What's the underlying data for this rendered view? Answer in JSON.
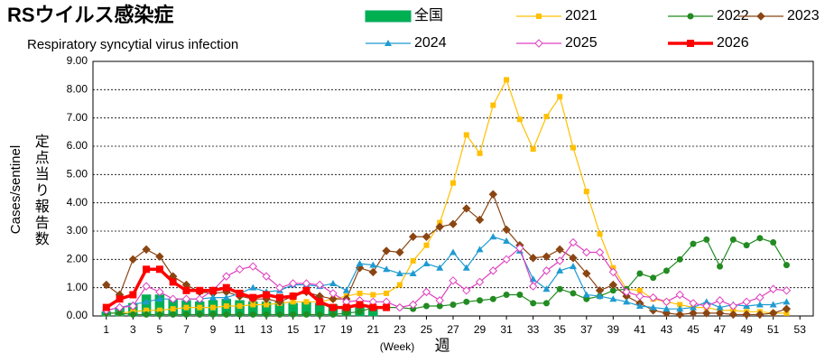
{
  "chart_data": {
    "type": "line",
    "title": "RSウイルス感染症",
    "subtitle": "Respiratory syncytial virus infection",
    "y_label": "Cases/sentinel",
    "y_label_jp": "定点当り報告数",
    "x_label": "(Week)",
    "x_label_jp": "週",
    "x": [
      1,
      2,
      3,
      4,
      5,
      6,
      7,
      8,
      9,
      10,
      11,
      12,
      13,
      14,
      15,
      16,
      17,
      18,
      19,
      20,
      21,
      22,
      23,
      24,
      25,
      26,
      27,
      28,
      29,
      30,
      31,
      32,
      33,
      34,
      35,
      36,
      37,
      38,
      39,
      40,
      41,
      42,
      43,
      44,
      45,
      46,
      47,
      48,
      49,
      50,
      51,
      52,
      53
    ],
    "xlim": [
      0,
      54
    ],
    "xticks": [
      1,
      3,
      5,
      7,
      9,
      11,
      13,
      15,
      17,
      19,
      21,
      23,
      25,
      27,
      29,
      31,
      33,
      35,
      37,
      39,
      41,
      43,
      45,
      47,
      49,
      51,
      53
    ],
    "ylim": [
      0,
      9
    ],
    "yticks": [
      {
        "value": 0,
        "label": "0.00"
      },
      {
        "value": 1,
        "label": "1.00"
      },
      {
        "value": 2,
        "label": "2.00"
      },
      {
        "value": 3,
        "label": "3.00"
      },
      {
        "value": 4,
        "label": "4.00"
      },
      {
        "value": 5,
        "label": "5.00"
      },
      {
        "value": 6,
        "label": "6.00"
      },
      {
        "value": 7,
        "label": "7.00"
      },
      {
        "value": 8,
        "label": "8.00"
      },
      {
        "value": 9,
        "label": "9.00"
      }
    ],
    "grid": true,
    "series": [
      {
        "name": "全国",
        "color": "#00b050",
        "kind": "bar",
        "values": [
          0.15,
          0.3,
          0.45,
          0.75,
          0.75,
          0.6,
          0.55,
          0.5,
          0.55,
          0.6,
          0.55,
          0.5,
          0.5,
          0.5,
          0.45,
          0.5,
          0.45,
          0.4,
          0.35,
          0.35,
          0.3,
          null,
          null,
          null,
          null,
          null,
          null,
          null,
          null,
          null,
          null,
          null,
          null,
          null,
          null,
          null,
          null,
          null,
          null,
          null,
          null,
          null,
          null,
          null,
          null,
          null,
          null,
          null,
          null,
          null,
          null,
          null,
          null
        ]
      },
      {
        "name": "2021",
        "color": "#ffc000",
        "marker": "square",
        "values": [
          0.1,
          0.1,
          0.15,
          0.2,
          0.2,
          0.25,
          0.3,
          0.3,
          0.3,
          0.35,
          0.35,
          0.4,
          0.4,
          0.45,
          0.5,
          0.5,
          0.5,
          0.6,
          0.7,
          0.8,
          0.75,
          0.8,
          1.1,
          1.95,
          2.5,
          3.3,
          4.7,
          6.4,
          5.75,
          7.45,
          8.35,
          6.95,
          5.9,
          7.05,
          7.75,
          5.95,
          4.4,
          2.9,
          1.7,
          0.95,
          0.9,
          0.6,
          0.5,
          0.4,
          0.3,
          0.3,
          0.2,
          0.2,
          0.15,
          0.15,
          0.1,
          0.1,
          null
        ]
      },
      {
        "name": "2022",
        "color": "#228b22",
        "marker": "circle",
        "values": [
          0.1,
          0.1,
          0.05,
          0.05,
          0.05,
          0.05,
          0.05,
          0.05,
          0.05,
          0.05,
          0.05,
          0.05,
          0.05,
          0.05,
          0.05,
          0.05,
          0.05,
          0.05,
          0.1,
          0.15,
          0.3,
          0.3,
          0.3,
          0.25,
          0.35,
          0.35,
          0.4,
          0.5,
          0.55,
          0.6,
          0.75,
          0.75,
          0.45,
          0.45,
          0.95,
          0.8,
          0.6,
          0.7,
          0.9,
          0.95,
          1.5,
          1.35,
          1.6,
          2.0,
          2.55,
          2.7,
          1.75,
          2.7,
          2.5,
          2.75,
          2.6,
          1.8,
          null
        ]
      },
      {
        "name": "2023",
        "color": "#8b4513",
        "marker": "diamond",
        "values": [
          1.1,
          0.75,
          2.0,
          2.35,
          2.1,
          1.4,
          1.1,
          0.85,
          0.8,
          0.85,
          0.7,
          0.6,
          0.6,
          0.5,
          0.7,
          0.85,
          0.7,
          0.6,
          0.6,
          1.7,
          1.55,
          2.3,
          2.25,
          2.8,
          2.8,
          3.15,
          3.25,
          3.8,
          3.4,
          4.3,
          3.05,
          2.5,
          2.05,
          2.1,
          2.35,
          2.05,
          1.5,
          0.9,
          1.1,
          0.7,
          0.45,
          0.2,
          0.1,
          0.05,
          0.1,
          0.1,
          0.1,
          0.05,
          0.05,
          0.05,
          0.1,
          0.25,
          null
        ]
      },
      {
        "name": "2024",
        "color": "#1f9bd1",
        "marker": "triangle",
        "values": [
          0.2,
          0.3,
          0.4,
          0.5,
          0.6,
          0.6,
          0.6,
          0.6,
          0.65,
          0.65,
          0.8,
          1.0,
          0.85,
          0.9,
          1.1,
          1.1,
          1.05,
          1.15,
          0.9,
          1.85,
          1.8,
          1.65,
          1.5,
          1.5,
          1.85,
          1.7,
          2.25,
          1.7,
          2.35,
          2.8,
          2.65,
          2.3,
          1.3,
          0.95,
          1.6,
          1.75,
          0.75,
          0.7,
          0.6,
          0.5,
          0.35,
          0.3,
          0.25,
          0.25,
          0.3,
          0.5,
          0.3,
          0.4,
          0.35,
          0.4,
          0.4,
          0.5,
          null
        ]
      },
      {
        "name": "2025",
        "color": "#e040c0",
        "marker": "open-diamond",
        "values": [
          0.2,
          0.3,
          0.35,
          1.05,
          0.85,
          0.6,
          0.6,
          0.6,
          0.9,
          1.4,
          1.65,
          1.75,
          1.4,
          1.0,
          1.15,
          1.15,
          1.1,
          0.8,
          0.5,
          0.55,
          0.5,
          0.5,
          0.3,
          0.4,
          0.85,
          0.55,
          1.25,
          0.9,
          1.2,
          1.6,
          2.0,
          2.4,
          1.05,
          1.6,
          1.95,
          2.6,
          2.25,
          2.25,
          1.55,
          0.85,
          0.7,
          0.65,
          0.5,
          0.75,
          0.45,
          0.35,
          0.55,
          0.35,
          0.5,
          0.65,
          0.95,
          0.9,
          null
        ]
      },
      {
        "name": "2026",
        "color": "#ff0000",
        "marker": "big-square",
        "values": [
          0.3,
          0.6,
          0.75,
          1.65,
          1.65,
          1.2,
          0.9,
          0.9,
          0.9,
          1.0,
          0.8,
          0.65,
          0.75,
          0.65,
          0.7,
          0.9,
          0.5,
          0.3,
          0.3,
          0.4,
          0.3,
          0.3,
          null,
          null,
          null,
          null,
          null,
          null,
          null,
          null,
          null,
          null,
          null,
          null,
          null,
          null,
          null,
          null,
          null,
          null,
          null,
          null,
          null,
          null,
          null,
          null,
          null,
          null,
          null,
          null,
          null,
          null,
          null
        ]
      }
    ]
  }
}
